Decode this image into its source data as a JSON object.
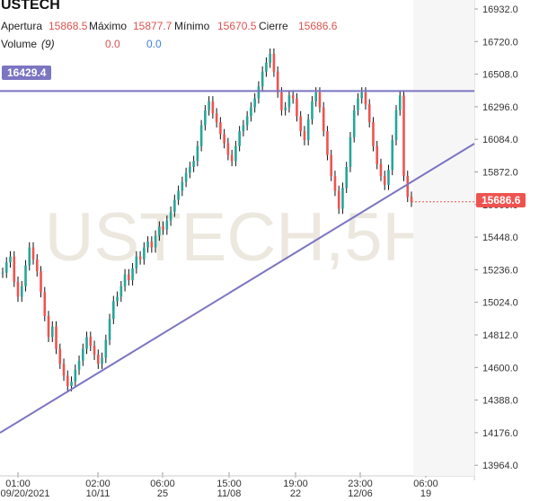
{
  "chart_data": {
    "type": "line",
    "symbol": "USTECH",
    "watermark": "USTECH,5H",
    "ohlc_labels": {
      "open_label": "Apertura",
      "open_value": "15868.5",
      "high_label": "Máximo",
      "high_value": "15877.7",
      "low_label": "Mínimo",
      "low_value": "15670.5",
      "close_label": "Cierre",
      "close_value": "15686.6"
    },
    "volume": {
      "label": "Volume",
      "period": "(9)",
      "value_a": "0.0",
      "value_b": "0.0"
    },
    "y_ticks": [
      "16932.0",
      "16720.0",
      "16508.0",
      "16296.0",
      "16084.0",
      "15872.0",
      "15660.0",
      "15448.0",
      "15236.0",
      "15024.0",
      "14812.0",
      "14600.0",
      "14388.0",
      "14176.0",
      "13964.0"
    ],
    "ylim": [
      13920,
      16980
    ],
    "x_ticks": [
      {
        "time": "01:00",
        "date": "09/20/2021"
      },
      {
        "time": "02:00",
        "date": "10/11"
      },
      {
        "time": "06:00",
        "date": "25"
      },
      {
        "time": "15:00",
        "date": "11/08"
      },
      {
        "time": "19:00",
        "date": "22"
      },
      {
        "time": "23:00",
        "date": "12/06"
      },
      {
        "time": "06:00",
        "date": "19"
      }
    ],
    "resistance_level": "16429.4",
    "current_price": "15686.6",
    "close_series": [
      15210,
      15280,
      15320,
      15150,
      15050,
      15120,
      15260,
      15380,
      15300,
      15220,
      15080,
      14920,
      14780,
      14850,
      14700,
      14600,
      14520,
      14450,
      14480,
      14560,
      14620,
      14700,
      14780,
      14720,
      14660,
      14600,
      14640,
      14760,
      14900,
      15020,
      15050,
      15120,
      15200,
      15160,
      15240,
      15320,
      15300,
      15380,
      15420,
      15380,
      15460,
      15520,
      15500,
      15560,
      15620,
      15700,
      15760,
      15820,
      15880,
      15920,
      15960,
      16060,
      16200,
      16300,
      16360,
      16280,
      16220,
      16140,
      16080,
      16000,
      15960,
      16060,
      16160,
      16200,
      16260,
      16320,
      16380,
      16460,
      16560,
      16620,
      16680,
      16560,
      16420,
      16300,
      16320,
      16400,
      16380,
      16260,
      16160,
      16100,
      16240,
      16360,
      16420,
      16320,
      16160,
      16000,
      15860,
      15760,
      15640,
      15780,
      15920,
      16120,
      16300,
      16380,
      16420,
      16340,
      16220,
      16060,
      15940,
      15860,
      15800,
      15900,
      16100,
      16300,
      16400,
      15860,
      15720,
      15686.6
    ],
    "series_up_color": "#26a69a",
    "series_down_color": "#ef5350",
    "line_color": "#7b75c2",
    "price_label_color": "#ef5350",
    "resistance_label_color": "#7b75c2"
  }
}
